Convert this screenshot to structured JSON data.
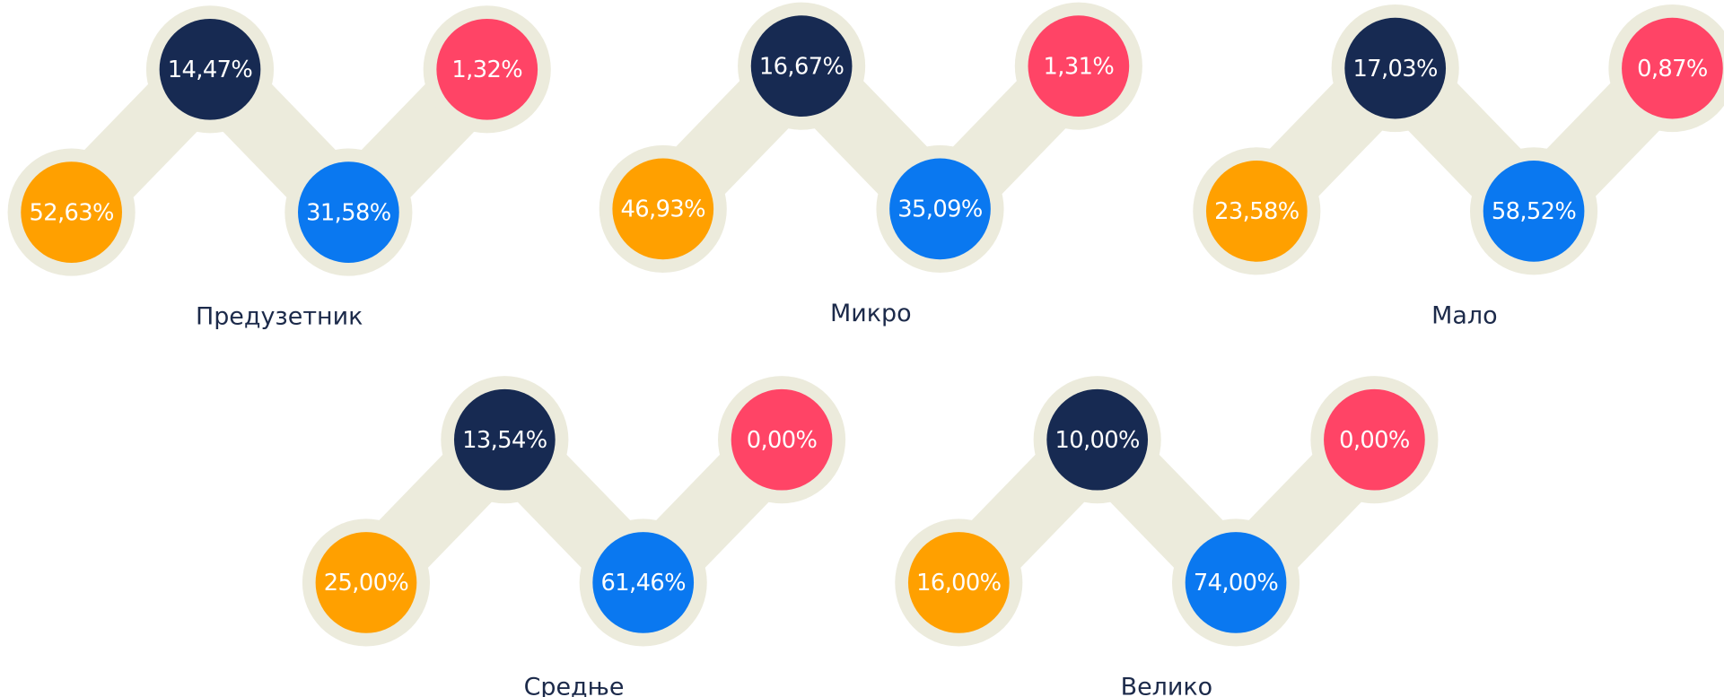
{
  "groups": [
    {
      "label": "Предузетник",
      "values": [
        "52,63%",
        "14,47%",
        "31,58%",
        "1,32%"
      ]
    },
    {
      "label": "Микро",
      "values": [
        "46,93%",
        "16,67%",
        "35,09%",
        "1,31%"
      ]
    },
    {
      "label": "Мало",
      "values": [
        "23,58%",
        "17,03%",
        "58,52%",
        "0,87%"
      ]
    },
    {
      "label": "Средње",
      "values": [
        "25,00%",
        "13,54%",
        "61,46%",
        "0,00%"
      ]
    },
    {
      "label": "Велико",
      "values": [
        "16,00%",
        "10,00%",
        "74,00%",
        "0,00%"
      ]
    }
  ]
}
